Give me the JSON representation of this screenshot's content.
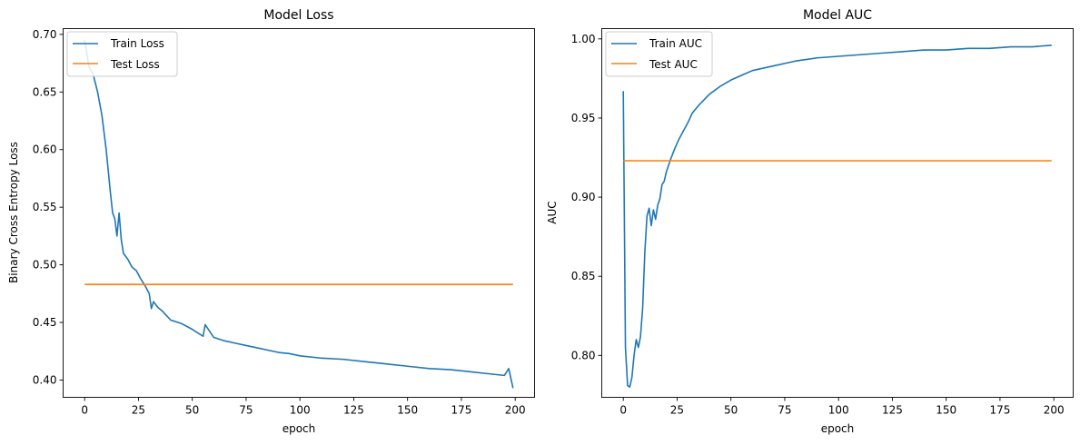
{
  "chart_data": [
    {
      "type": "line",
      "title": "Model Loss",
      "xlabel": "epoch",
      "ylabel": "Binary Cross Entropy Loss",
      "xlim": [
        -10,
        209
      ],
      "ylim": [
        0.385,
        0.705
      ],
      "xticks": [
        0,
        25,
        50,
        75,
        100,
        125,
        150,
        175,
        200
      ],
      "yticks": [
        0.4,
        0.45,
        0.5,
        0.55,
        0.6,
        0.65,
        0.7
      ],
      "ytick_labels": [
        "0.40",
        "0.45",
        "0.50",
        "0.55",
        "0.60",
        "0.65",
        "0.70"
      ],
      "legend_position": "upper-left",
      "series": [
        {
          "name": "Train Loss",
          "color": "#1f77b4",
          "x": [
            0,
            2,
            4,
            6,
            8,
            10,
            12,
            13,
            14,
            15,
            16,
            17,
            18,
            20,
            22,
            24,
            26,
            28,
            30,
            31,
            32,
            34,
            36,
            38,
            40,
            45,
            50,
            55,
            56,
            60,
            65,
            70,
            75,
            80,
            85,
            90,
            95,
            100,
            110,
            120,
            130,
            140,
            150,
            160,
            170,
            180,
            185,
            190,
            195,
            197,
            199
          ],
          "y": [
            0.695,
            0.672,
            0.665,
            0.65,
            0.63,
            0.6,
            0.562,
            0.545,
            0.54,
            0.525,
            0.545,
            0.522,
            0.51,
            0.505,
            0.498,
            0.495,
            0.488,
            0.482,
            0.475,
            0.462,
            0.468,
            0.463,
            0.46,
            0.456,
            0.452,
            0.449,
            0.444,
            0.438,
            0.448,
            0.437,
            0.434,
            0.432,
            0.43,
            0.428,
            0.426,
            0.424,
            0.423,
            0.421,
            0.419,
            0.418,
            0.416,
            0.414,
            0.412,
            0.41,
            0.409,
            0.407,
            0.406,
            0.405,
            0.404,
            0.41,
            0.393
          ]
        },
        {
          "name": "Test Loss",
          "color": "#ff7f0e",
          "x": [
            0,
            199
          ],
          "y": [
            0.483,
            0.483
          ]
        }
      ]
    },
    {
      "type": "line",
      "title": "Model AUC",
      "xlabel": "epoch",
      "ylabel": "AUC",
      "xlim": [
        -10,
        209
      ],
      "ylim": [
        0.7735,
        1.0065
      ],
      "xticks": [
        0,
        25,
        50,
        75,
        100,
        125,
        150,
        175,
        200
      ],
      "yticks": [
        0.8,
        0.85,
        0.9,
        0.95,
        1.0
      ],
      "ytick_labels": [
        "0.80",
        "0.85",
        "0.90",
        "0.95",
        "1.00"
      ],
      "legend_position": "upper-left",
      "series": [
        {
          "name": "Train AUC",
          "color": "#1f77b4",
          "x": [
            0,
            1,
            2,
            3,
            4,
            5,
            6,
            7,
            8,
            9,
            10,
            11,
            12,
            13,
            14,
            15,
            16,
            17,
            18,
            19,
            20,
            22,
            24,
            26,
            28,
            30,
            32,
            35,
            40,
            45,
            50,
            55,
            60,
            70,
            80,
            90,
            100,
            110,
            120,
            130,
            140,
            150,
            160,
            170,
            180,
            190,
            199
          ],
          "y": [
            0.967,
            0.805,
            0.781,
            0.78,
            0.786,
            0.8,
            0.81,
            0.805,
            0.812,
            0.83,
            0.865,
            0.888,
            0.893,
            0.882,
            0.892,
            0.886,
            0.895,
            0.899,
            0.908,
            0.91,
            0.916,
            0.924,
            0.931,
            0.937,
            0.942,
            0.947,
            0.953,
            0.958,
            0.965,
            0.97,
            0.974,
            0.977,
            0.98,
            0.983,
            0.986,
            0.988,
            0.989,
            0.99,
            0.991,
            0.992,
            0.993,
            0.993,
            0.994,
            0.994,
            0.995,
            0.995,
            0.996
          ]
        },
        {
          "name": "Test AUC",
          "color": "#ff7f0e",
          "x": [
            0,
            199
          ],
          "y": [
            0.923,
            0.923
          ]
        }
      ]
    }
  ]
}
